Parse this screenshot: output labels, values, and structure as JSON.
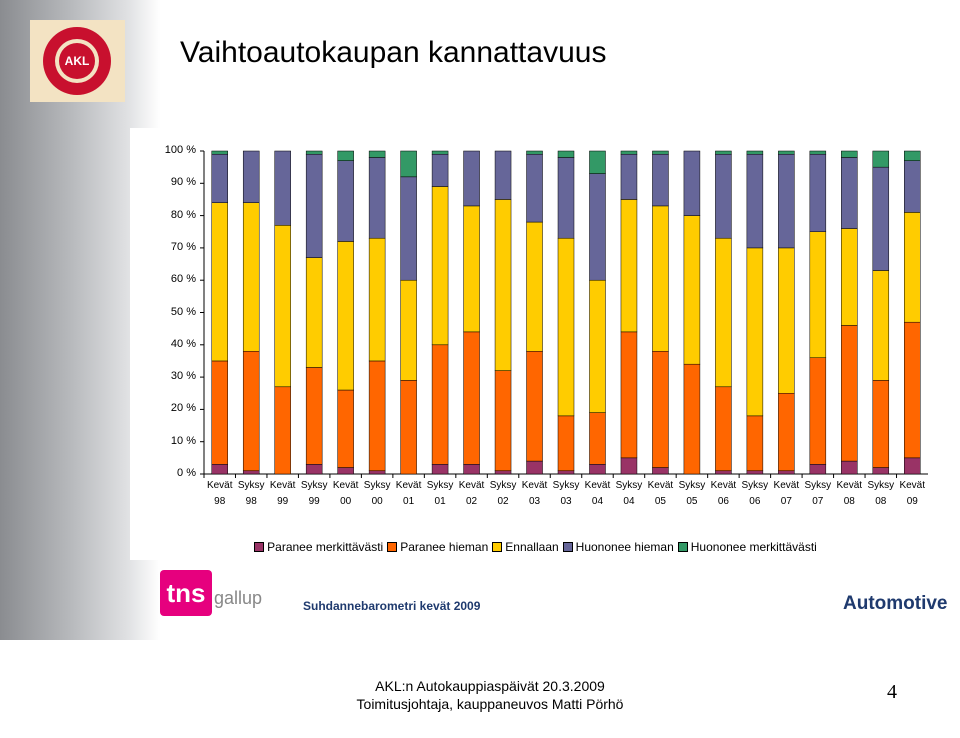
{
  "slide": {
    "title": "Vaihtoautokaupan kannattavuus",
    "logo": "AKL",
    "brand_main": "tns",
    "brand_sub": "gallup",
    "source": "Suhdannebarometri kevät 2009",
    "sector": "Automotive",
    "footer_line1": "AKL:n Autokauppiaspäivät 20.3.2009",
    "footer_line2": "Toimitusjohtaja, kauppaneuvos Matti Pörhö",
    "page_number": "4"
  },
  "chart_data": {
    "type": "stacked-bar",
    "categories": [
      "Kevät 98",
      "Syksy 98",
      "Kevät 99",
      "Syksy 99",
      "Kevät 00",
      "Syksy 00",
      "Kevät 01",
      "Syksy 01",
      "Kevät 02",
      "Syksy 02",
      "Kevät 03",
      "Syksy 03",
      "Kevät 04",
      "Syksy 04",
      "Kevät 05",
      "Syksy 05",
      "Kevät 06",
      "Syksy 06",
      "Kevät 07",
      "Syksy 07",
      "Kevät 08",
      "Syksy 08",
      "Kevät 09"
    ],
    "series": [
      {
        "name": "Paranee merkittävästi",
        "color": "#993366",
        "values": [
          3,
          1,
          0,
          3,
          2,
          1,
          0,
          3,
          3,
          1,
          4,
          1,
          3,
          5,
          2,
          0,
          1,
          1,
          1,
          3,
          4,
          2,
          5
        ]
      },
      {
        "name": "Paranee hieman",
        "color": "#ff6600",
        "values": [
          32,
          37,
          27,
          30,
          24,
          34,
          29,
          37,
          41,
          31,
          34,
          17,
          16,
          39,
          36,
          34,
          26,
          17,
          24,
          33,
          42,
          27,
          42
        ]
      },
      {
        "name": "Ennallaan",
        "color": "#ffcc00",
        "values": [
          49,
          46,
          50,
          34,
          46,
          38,
          31,
          49,
          39,
          53,
          40,
          55,
          41,
          41,
          45,
          46,
          46,
          52,
          45,
          39,
          30,
          34,
          34
        ]
      },
      {
        "name": "Huononee hieman",
        "color": "#666699",
        "values": [
          15,
          16,
          23,
          32,
          25,
          25,
          32,
          10,
          17,
          15,
          21,
          25,
          33,
          14,
          16,
          20,
          26,
          29,
          29,
          24,
          22,
          32,
          16
        ]
      },
      {
        "name": "Huononee merkittävästi",
        "color": "#339966",
        "values": [
          1,
          0,
          0,
          1,
          3,
          2,
          8,
          1,
          0,
          0,
          1,
          2,
          7,
          1,
          1,
          0,
          1,
          1,
          1,
          1,
          2,
          5,
          3
        ]
      }
    ],
    "ylim": [
      0,
      100
    ],
    "yticks": [
      {
        "value": 0,
        "label": "0 %"
      },
      {
        "value": 10,
        "label": "10 %"
      },
      {
        "value": 20,
        "label": "20 %"
      },
      {
        "value": 30,
        "label": "30 %"
      },
      {
        "value": 40,
        "label": "40 %"
      },
      {
        "value": 50,
        "label": "50 %"
      },
      {
        "value": 60,
        "label": "60 %"
      },
      {
        "value": 70,
        "label": "70 %"
      },
      {
        "value": 80,
        "label": "80 %"
      },
      {
        "value": 90,
        "label": "90 %"
      },
      {
        "value": 100,
        "label": "100 %"
      }
    ],
    "legend": "bottom"
  }
}
